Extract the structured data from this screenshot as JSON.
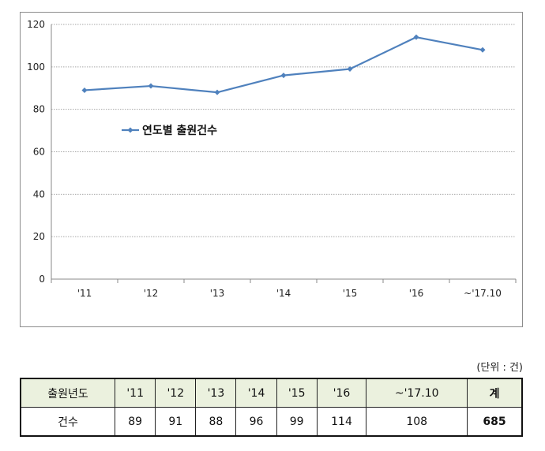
{
  "chart_data": {
    "type": "line",
    "categories": [
      "'11",
      "'12",
      "'13",
      "'14",
      "'15",
      "'16",
      "~'17.10"
    ],
    "series": [
      {
        "name": "연도별 출원건수",
        "values": [
          89,
          91,
          88,
          96,
          99,
          114,
          108
        ]
      }
    ],
    "yticks": [
      "0",
      "20",
      "40",
      "60",
      "80",
      "100",
      "120"
    ],
    "ylim": [
      0,
      120
    ],
    "grid": "horizontal dashed",
    "legend_position": "left, inside plot",
    "line_color": "#4f81bd",
    "marker": "diamond"
  },
  "unit_note": "(단위 : 건)",
  "table": {
    "header_label": "출원년도",
    "years": [
      "'11",
      "'12",
      "'13",
      "'14",
      "'15",
      "'16",
      "~'17.10"
    ],
    "total_label": "계",
    "row_label": "건수",
    "counts": [
      "89",
      "91",
      "88",
      "96",
      "99",
      "114",
      "108"
    ],
    "total": "685",
    "header_bg": "#ebf1de"
  }
}
